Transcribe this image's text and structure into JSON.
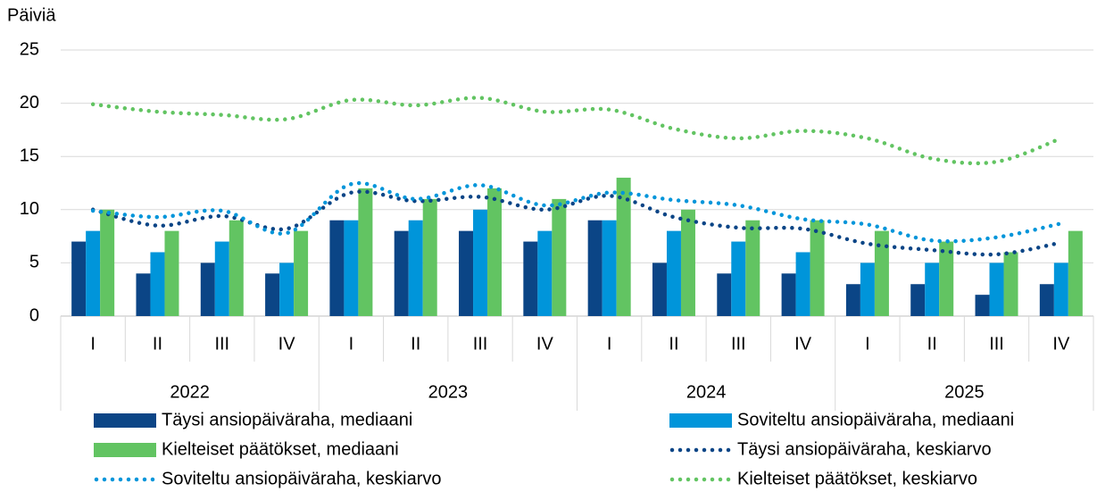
{
  "chart_data": {
    "type": "bar",
    "ylabel": "Päiviä",
    "categories": [
      "I",
      "II",
      "III",
      "IV",
      "I",
      "II",
      "III",
      "IV",
      "I",
      "II",
      "III",
      "IV",
      "I",
      "II",
      "III",
      "IV"
    ],
    "groups": [
      "2022",
      "2023",
      "2024",
      "2025"
    ],
    "ylim": [
      0,
      25
    ],
    "yticks": [
      0,
      5,
      10,
      15,
      20,
      25
    ],
    "grid": true,
    "series": [
      {
        "name": "Täysi ansiopäiväraha, mediaani",
        "type": "bar",
        "color": "#0b4586",
        "values": [
          7,
          4,
          5,
          4,
          9,
          8,
          8,
          7,
          9,
          5,
          4,
          4,
          3,
          3,
          2,
          3
        ]
      },
      {
        "name": "Soviteltu ansiopäiväraha, mediaani",
        "type": "bar",
        "color": "#0095da",
        "values": [
          8,
          6,
          7,
          5,
          9,
          9,
          10,
          8,
          9,
          8,
          7,
          6,
          5,
          5,
          5,
          5
        ]
      },
      {
        "name": "Kielteiset päätökset, mediaani",
        "type": "bar",
        "color": "#62c462",
        "values": [
          10,
          8,
          9,
          8,
          12,
          11,
          12,
          11,
          13,
          10,
          9,
          9,
          8,
          7,
          6,
          8
        ]
      },
      {
        "name": "Täysi ansiopäiväraha, keskiarvo",
        "type": "line",
        "color": "#0b4586",
        "values": [
          10.0,
          8.5,
          9.4,
          8.2,
          11.6,
          10.8,
          11.2,
          10.0,
          11.3,
          9.3,
          8.3,
          8.2,
          6.8,
          6.2,
          5.8,
          6.9
        ]
      },
      {
        "name": "Soviteltu ansiopäiväraha, keskiarvo",
        "type": "line",
        "color": "#0095da",
        "values": [
          9.9,
          9.3,
          9.9,
          7.8,
          12.4,
          11.0,
          12.3,
          10.4,
          11.6,
          10.9,
          10.4,
          9.1,
          8.6,
          7.1,
          7.4,
          8.7
        ]
      },
      {
        "name": "Kielteiset päätökset, keskiarvo",
        "type": "line",
        "color": "#62c462",
        "values": [
          19.9,
          19.2,
          18.9,
          18.5,
          20.3,
          19.8,
          20.5,
          19.2,
          19.4,
          17.6,
          16.7,
          17.4,
          16.7,
          14.8,
          14.5,
          16.7
        ]
      }
    ]
  }
}
